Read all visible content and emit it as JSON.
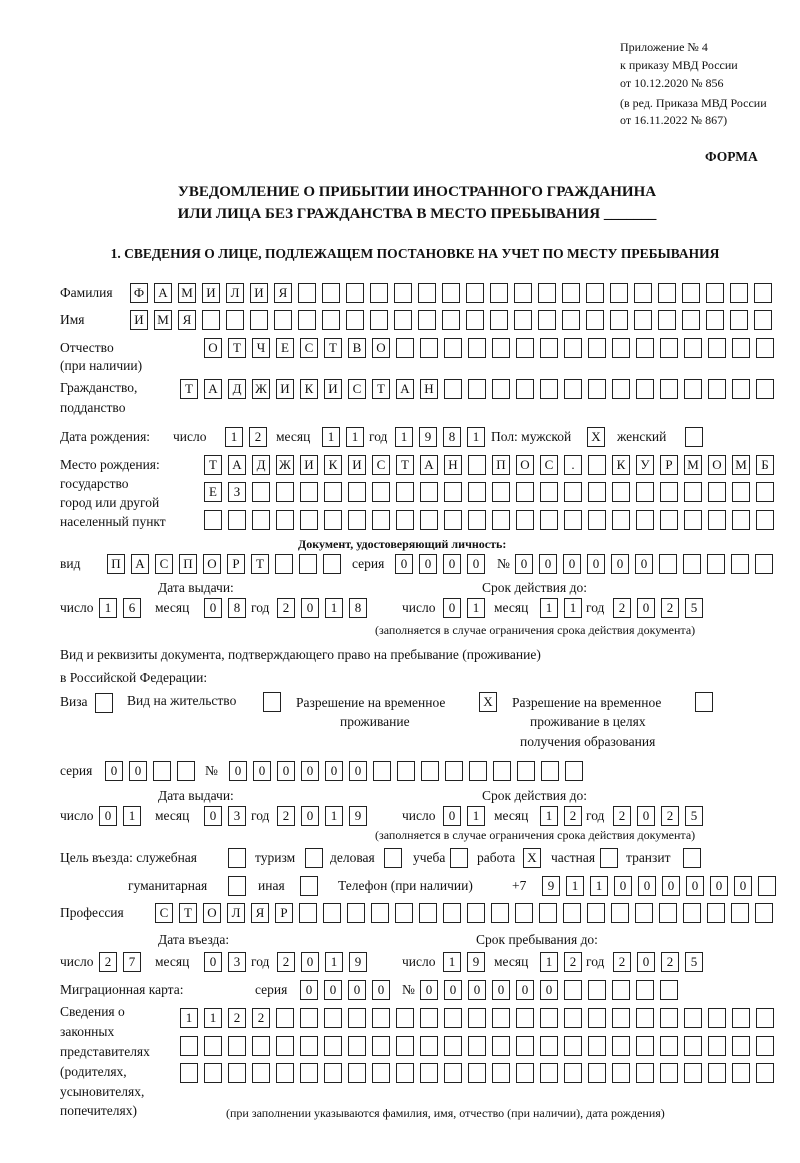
{
  "header": {
    "l1": "Приложение № 4",
    "l2": "к приказу МВД России",
    "l3": "от 10.12.2020 № 856",
    "l4": "(в ред. Приказа МВД России",
    "l5": "от 16.11.2022 № 867)",
    "form": "ФОРМА"
  },
  "title": {
    "l1": "УВЕДОМЛЕНИЕ О ПРИБЫТИИ ИНОСТРАННОГО ГРАЖДАНИНА",
    "l2": "ИЛИ ЛИЦА БЕЗ ГРАЖДАНСТВА В МЕСТО ПРЕБЫВАНИЯ _______",
    "section": "1. СВЕДЕНИЯ О ЛИЦЕ, ПОДЛЕЖАЩЕМ ПОСТАНОВКЕ НА УЧЕТ ПО МЕСТУ ПРЕБЫВАНИЯ"
  },
  "labels": {
    "surname": "Фамилия",
    "name": "Имя",
    "patronymic": "Отчество",
    "patronymic2": "(при наличии)",
    "citizenship": "Гражданство,",
    "citizenship2": "подданство",
    "birth_date": "Дата рождения:",
    "day": "число",
    "month": "месяц",
    "year": "год",
    "sex": "Пол: мужской",
    "female": "женский",
    "birthplace1": "Место рождения:",
    "birthplace2": "государство",
    "birthplace3": "город или другой",
    "birthplace4": "населенный пункт",
    "id_doc": "Документ, удостоверяющий личность:",
    "kind": "вид",
    "series": "серия",
    "number": "№",
    "issue_date": "Дата выдачи:",
    "valid_until": "Срок действия до:",
    "valid_note": "(заполняется в случае ограничения срока действия документа)",
    "right_doc1": "Вид и реквизиты документа, подтверждающего право на пребывание (проживание)",
    "right_doc2": "в Российской Федерации:",
    "visa": "Виза",
    "residence": "Вид на жительство",
    "trp1": "Разрешение на временное",
    "trp2": "проживание",
    "trpe1": "Разрешение на временное",
    "trpe2": "проживание в целях",
    "trpe3": "получения образования",
    "purpose": "Цель въезда: служебная",
    "tourism": "туризм",
    "business": "деловая",
    "study": "учеба",
    "work": "работа",
    "private": "частная",
    "transit": "транзит",
    "humanitarian": "гуманитарная",
    "other": "иная",
    "phone": "Телефон (при наличии)",
    "phone_prefix": "+7",
    "profession": "Профессия",
    "entry_date": "Дата въезда:",
    "stay_until": "Срок пребывания до:",
    "migration_card": "Миграционная карта:",
    "reps1": "Сведения о",
    "reps2": "законных",
    "reps3": "представителях",
    "reps4": "(родителях,",
    "reps5": "усыновителях,",
    "reps6": "попечителях)",
    "reps_note": "(при заполнении указываются фамилия, имя, отчество (при наличии), дата рождения)"
  },
  "values": {
    "surname": "ФАМИЛИЯ",
    "name": "ИМЯ",
    "patronymic": "ОТЧЕСТВО",
    "citizenship": "ТАДЖИКИСТАН",
    "birth_day": "12",
    "birth_month": "11",
    "birth_year": "1981",
    "sex_male": "X",
    "sex_female": "",
    "birthplace_1": "ТАДЖИКИСТАН ПОС. КУРМОМБ",
    "birthplace_2": "ЕЗ",
    "birthplace_3": "",
    "id_kind": "ПАСПОРТ",
    "id_series": "0000",
    "id_number": "000000",
    "id_issue_day": "16",
    "id_issue_month": "08",
    "id_issue_year": "2018",
    "id_valid_day": "01",
    "id_valid_month": "11",
    "id_valid_year": "2025",
    "visa": "",
    "residence": "",
    "trp": "X",
    "trpe": "",
    "rd_series": "00",
    "rd_number": "000000",
    "rd_issue_day": "01",
    "rd_issue_month": "03",
    "rd_issue_year": "2019",
    "rd_valid_day": "01",
    "rd_valid_month": "12",
    "rd_valid_year": "2025",
    "p_official": "",
    "p_tourism": "",
    "p_business": "",
    "p_study": "",
    "p_work": "X",
    "p_private": "",
    "p_transit": "",
    "p_humanitarian": "",
    "p_other": "",
    "phone": "911000000",
    "profession": "СТОЛЯР",
    "entry_day": "27",
    "entry_month": "03",
    "entry_year": "2019",
    "stay_day": "19",
    "stay_month": "12",
    "stay_year": "2025",
    "mc_series": "0000",
    "mc_number": "000000",
    "reps_1": "1122",
    "reps_2": "",
    "reps_3": ""
  }
}
